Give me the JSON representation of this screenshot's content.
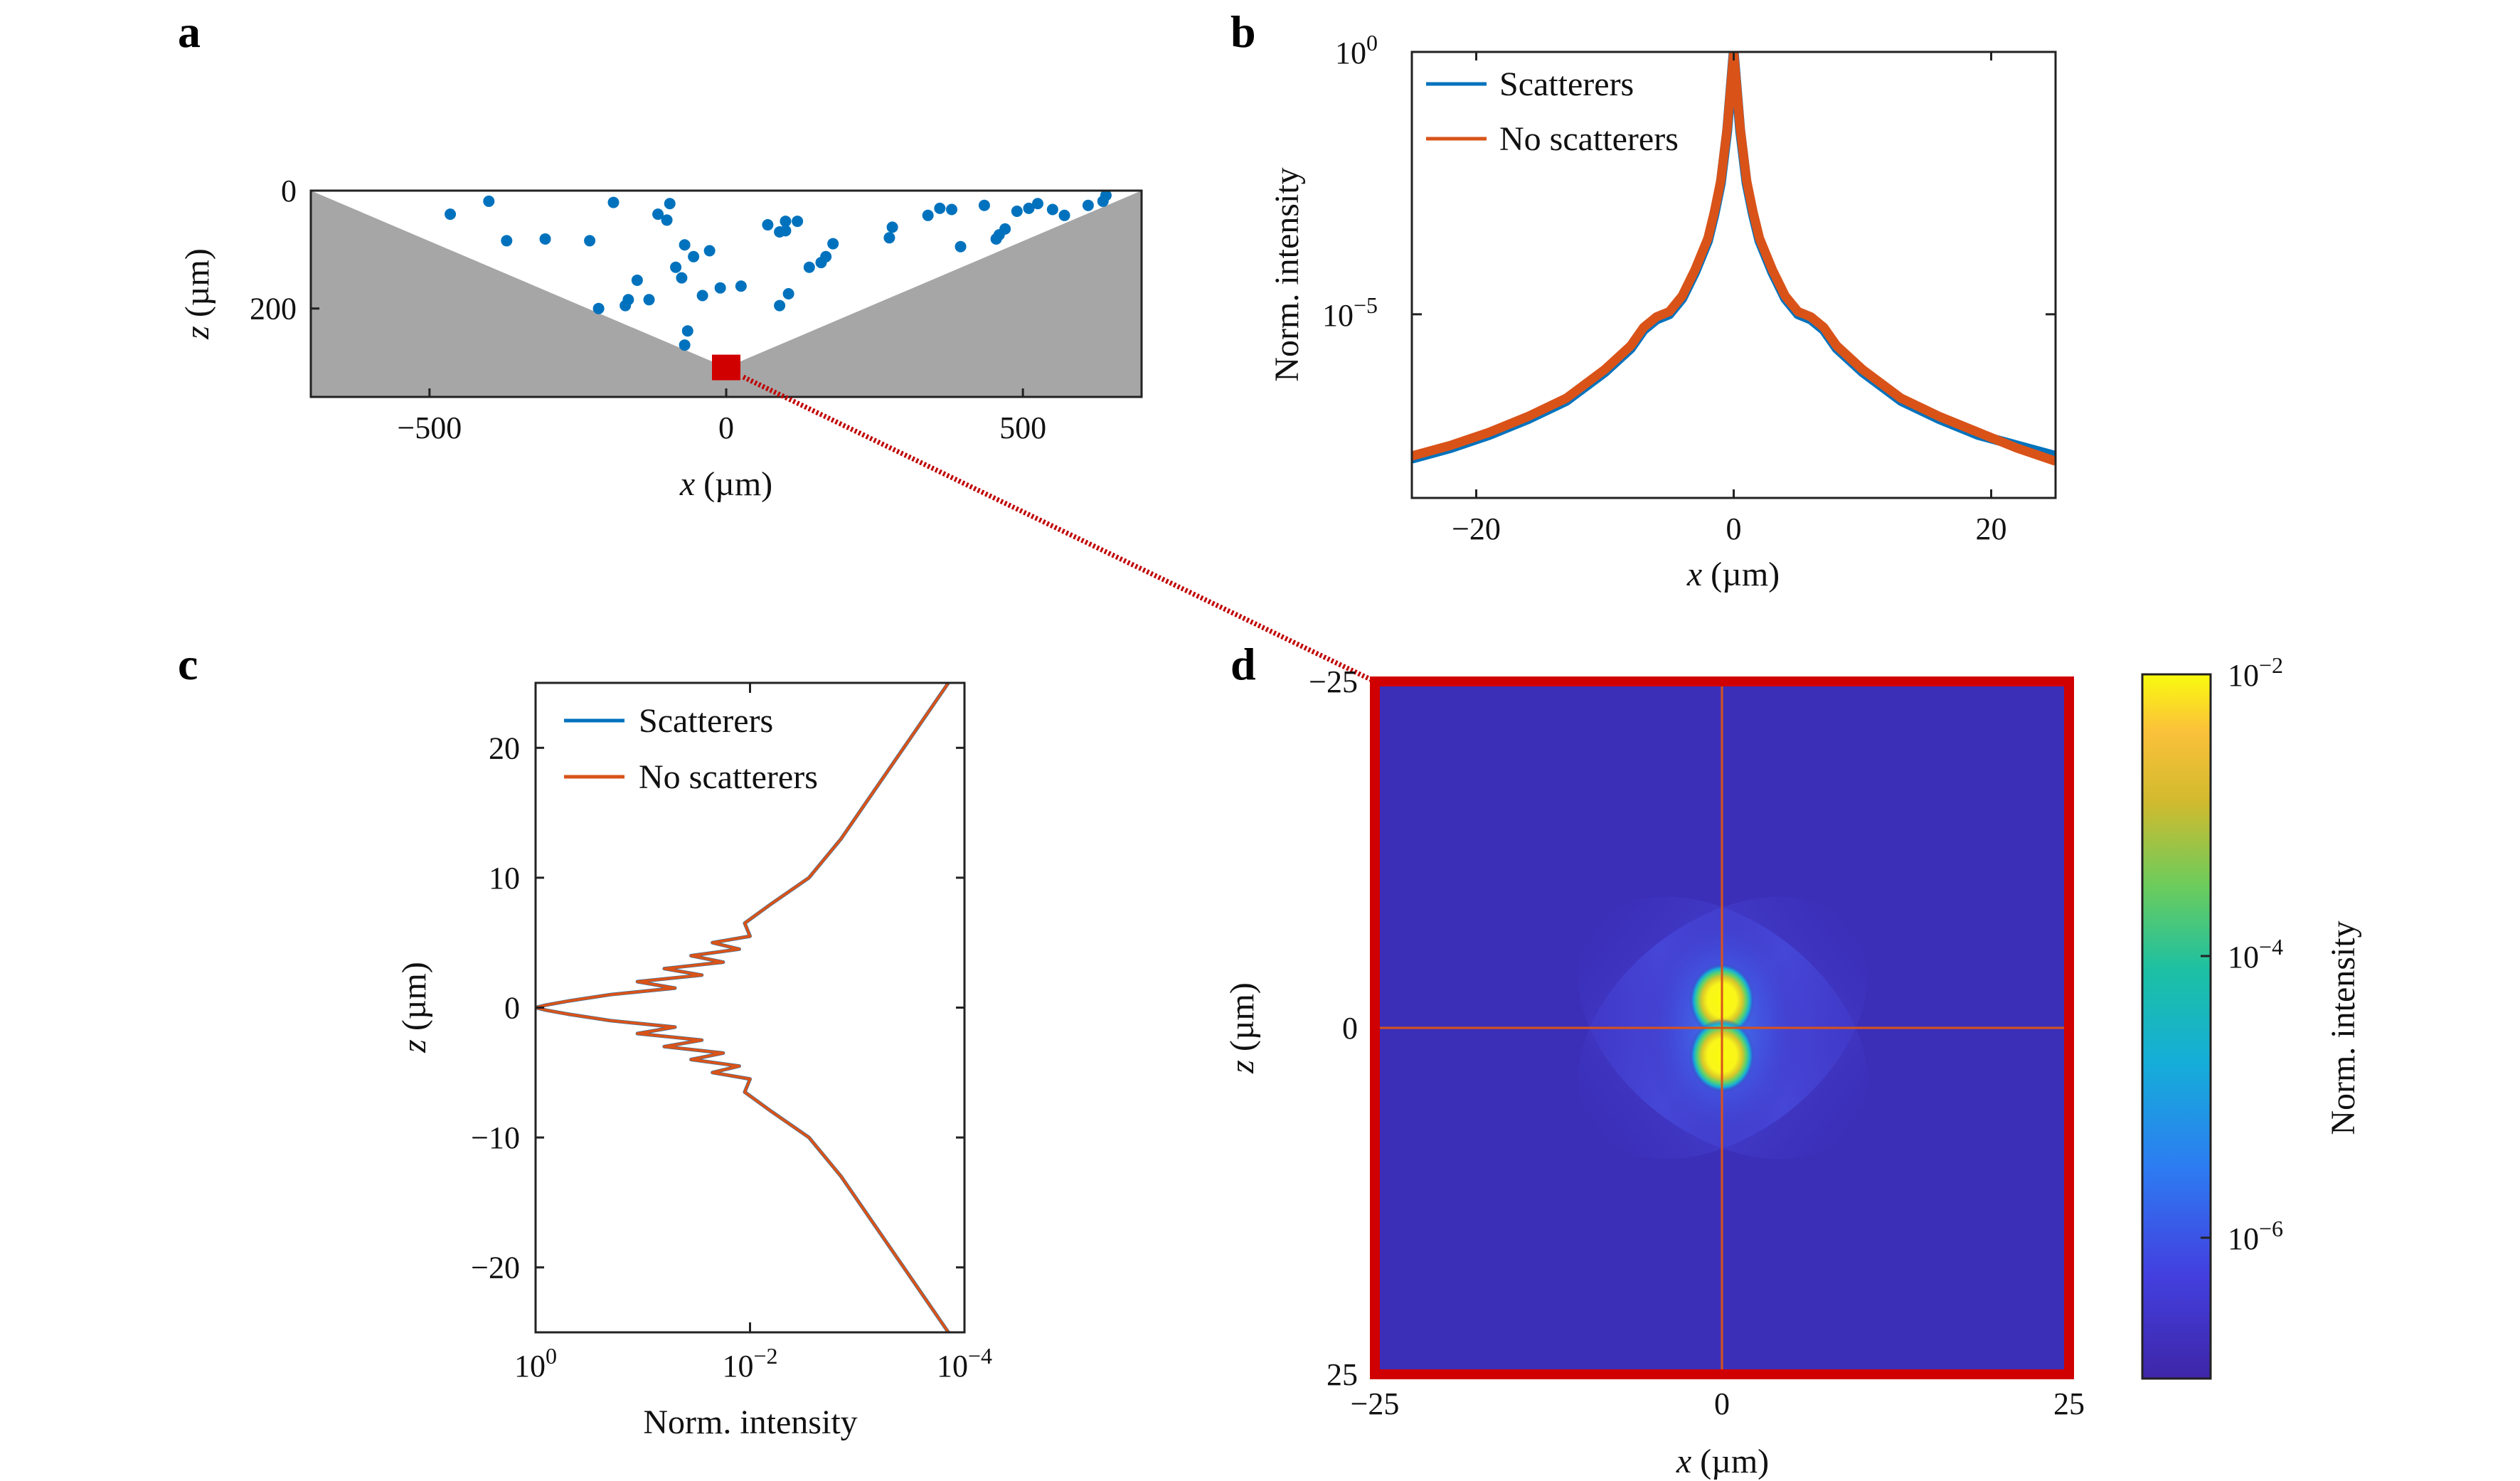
{
  "colors": {
    "scatterers": "#0072BD",
    "no_scatterers": "#D95319",
    "wedge": "#a6a6a6",
    "highlight_box": "#d10000",
    "heatmap_bg": "#3b2fb8"
  },
  "panels": {
    "a": {
      "label": "a"
    },
    "b": {
      "label": "b"
    },
    "c": {
      "label": "c"
    },
    "d": {
      "label": "d"
    }
  },
  "chart_data": [
    {
      "id": "a",
      "type": "scatter",
      "xlabel_var": "x",
      "xlabel_unit": " (µm)",
      "ylabel_var": "z",
      "ylabel_unit": " (µm)",
      "xlim": [
        -700,
        700
      ],
      "ylim": [
        0,
        350
      ],
      "y_reversed": true,
      "x_ticks": [
        "−500",
        "0",
        "500"
      ],
      "x_tick_values": [
        -500,
        0,
        500
      ],
      "y_ticks": [
        "0",
        "200"
      ],
      "y_tick_values": [
        0,
        200
      ],
      "wedge_apex": [
        0,
        300
      ],
      "wedge_corners": [
        [
          -700,
          0
        ],
        [
          700,
          0
        ]
      ],
      "highlight_point": [
        0,
        300
      ],
      "series": [
        {
          "points": [
            [
              -465,
              40
            ],
            [
              -400,
              18
            ],
            [
              -370,
              85
            ],
            [
              -305,
              82
            ],
            [
              -190,
              20
            ],
            [
              -230,
              85
            ],
            [
              -215,
              200
            ],
            [
              -170,
              195
            ],
            [
              -165,
              185
            ],
            [
              -150,
              152
            ],
            [
              -130,
              185
            ],
            [
              -115,
              40
            ],
            [
              -95,
              22
            ],
            [
              -100,
              50
            ],
            [
              -85,
              130
            ],
            [
              -75,
              148
            ],
            [
              -70,
              92
            ],
            [
              -65,
              238
            ],
            [
              -70,
              262
            ],
            [
              -55,
              112
            ],
            [
              -40,
              178
            ],
            [
              -28,
              102
            ],
            [
              -10,
              165
            ],
            [
              25,
              162
            ],
            [
              70,
              58
            ],
            [
              90,
              70
            ],
            [
              100,
              68
            ],
            [
              100,
              52
            ],
            [
              120,
              52
            ],
            [
              105,
              175
            ],
            [
              90,
              195
            ],
            [
              140,
              130
            ],
            [
              160,
              122
            ],
            [
              168,
              112
            ],
            [
              180,
              90
            ],
            [
              275,
              80
            ],
            [
              280,
              62
            ],
            [
              340,
              42
            ],
            [
              380,
              32
            ],
            [
              360,
              30
            ],
            [
              395,
              95
            ],
            [
              435,
              25
            ],
            [
              455,
              82
            ],
            [
              460,
              75
            ],
            [
              470,
              65
            ],
            [
              490,
              35
            ],
            [
              510,
              30
            ],
            [
              525,
              22
            ],
            [
              550,
              32
            ],
            [
              570,
              42
            ],
            [
              610,
              25
            ],
            [
              635,
              18
            ],
            [
              640,
              8
            ]
          ]
        }
      ]
    },
    {
      "id": "b",
      "type": "line",
      "xlabel_var": "x",
      "xlabel_unit": " (µm)",
      "ylabel": "Norm. intensity",
      "xlim": [
        -25,
        25
      ],
      "ylim_log10": [
        -8.5,
        0
      ],
      "y_scale": "log",
      "x_ticks": [
        "−20",
        "0",
        "20"
      ],
      "x_tick_values": [
        -20,
        0,
        20
      ],
      "y_ticks_base": [
        "10",
        "10"
      ],
      "y_ticks_exp": [
        "0",
        "−5"
      ],
      "y_tick_log_values": [
        0,
        -5
      ],
      "legend": [
        "Scatterers",
        "No scatterers"
      ],
      "series": [
        {
          "name": "Scatterers",
          "x": [
            -25,
            -22,
            -19,
            -16,
            -13,
            -10,
            -8,
            -7,
            -6,
            -5,
            -4,
            -3,
            -2,
            -1.5,
            -1,
            -0.5,
            0,
            0.5,
            1,
            1.5,
            2,
            3,
            4,
            5,
            6,
            7,
            8,
            10,
            13,
            16,
            19,
            22,
            25
          ],
          "log10_y": [
            -7.75,
            -7.55,
            -7.3,
            -7.0,
            -6.65,
            -6.1,
            -5.65,
            -5.3,
            -5.1,
            -5.0,
            -4.7,
            -4.2,
            -3.6,
            -3.1,
            -2.5,
            -1.5,
            0,
            -1.5,
            -2.5,
            -3.1,
            -3.6,
            -4.2,
            -4.7,
            -5.0,
            -5.1,
            -5.3,
            -5.65,
            -6.1,
            -6.65,
            -7.0,
            -7.3,
            -7.5,
            -7.7
          ]
        },
        {
          "name": "No scatterers",
          "x": [
            -25,
            -22,
            -19,
            -16,
            -13,
            -10,
            -8,
            -7,
            -6,
            -5,
            -4,
            -3,
            -2,
            -1.5,
            -1,
            -0.5,
            0,
            0.5,
            1,
            1.5,
            2,
            3,
            4,
            5,
            6,
            7,
            8,
            10,
            13,
            16,
            19,
            22,
            25
          ],
          "log10_y": [
            -7.7,
            -7.5,
            -7.25,
            -6.95,
            -6.6,
            -6.05,
            -5.6,
            -5.25,
            -5.05,
            -4.95,
            -4.65,
            -4.15,
            -3.55,
            -3.05,
            -2.45,
            -1.45,
            0,
            -1.45,
            -2.45,
            -3.05,
            -3.55,
            -4.15,
            -4.65,
            -4.95,
            -5.05,
            -5.25,
            -5.6,
            -6.05,
            -6.6,
            -6.95,
            -7.25,
            -7.55,
            -7.8
          ]
        }
      ]
    },
    {
      "id": "c",
      "type": "line",
      "xlabel": "Norm. intensity",
      "ylabel_var": "z",
      "ylabel_unit": " (µm)",
      "x_scale": "log",
      "x_reversed": true,
      "xlim_log10": [
        0,
        -4
      ],
      "ylim": [
        -25,
        25
      ],
      "x_ticks_base": [
        "10",
        "10",
        "10"
      ],
      "x_ticks_exp": [
        "0",
        "−2",
        "−4"
      ],
      "x_tick_log_values": [
        0,
        -2,
        -4
      ],
      "y_ticks": [
        "20",
        "10",
        "0",
        "−10",
        "−20"
      ],
      "y_tick_values": [
        20,
        10,
        0,
        -10,
        -20
      ],
      "legend": [
        "Scatterers",
        "No scatterers"
      ],
      "series": [
        {
          "name": "Scatterers",
          "z": [
            -25,
            -22,
            -19,
            -16,
            -13,
            -10,
            -8,
            -6.5,
            -5.5,
            -5,
            -4.5,
            -4,
            -3.5,
            -3,
            -2.5,
            -2,
            -1.5,
            -1,
            -0.5,
            -0.2,
            0,
            0.2,
            0.5,
            1,
            1.5,
            2,
            2.5,
            3,
            3.5,
            4,
            4.5,
            5,
            5.5,
            6.5,
            8,
            10,
            13,
            16,
            19,
            22,
            25
          ],
          "log10_y": [
            -3.85,
            -3.6,
            -3.35,
            -3.1,
            -2.85,
            -2.55,
            -2.2,
            -1.95,
            -2.0,
            -1.65,
            -1.9,
            -1.45,
            -1.75,
            -1.2,
            -1.55,
            -0.95,
            -1.3,
            -0.7,
            -0.3,
            -0.1,
            0,
            -0.1,
            -0.3,
            -0.7,
            -1.3,
            -0.95,
            -1.55,
            -1.2,
            -1.75,
            -1.45,
            -1.9,
            -1.65,
            -2.0,
            -1.95,
            -2.2,
            -2.55,
            -2.85,
            -3.1,
            -3.35,
            -3.6,
            -3.85
          ]
        },
        {
          "name": "No scatterers",
          "z": [
            -25,
            -22,
            -19,
            -16,
            -13,
            -10,
            -8,
            -6.5,
            -5.5,
            -5,
            -4.5,
            -4,
            -3.5,
            -3,
            -2.5,
            -2,
            -1.5,
            -1,
            -0.5,
            -0.2,
            0,
            0.2,
            0.5,
            1,
            1.5,
            2,
            2.5,
            3,
            3.5,
            4,
            4.5,
            5,
            5.5,
            6.5,
            8,
            10,
            13,
            16,
            19,
            22,
            25
          ],
          "log10_y": [
            -3.85,
            -3.6,
            -3.35,
            -3.1,
            -2.85,
            -2.55,
            -2.2,
            -1.95,
            -2.0,
            -1.65,
            -1.9,
            -1.45,
            -1.75,
            -1.2,
            -1.55,
            -0.95,
            -1.3,
            -0.7,
            -0.3,
            -0.1,
            0,
            -0.1,
            -0.3,
            -0.7,
            -1.3,
            -0.95,
            -1.55,
            -1.2,
            -1.75,
            -1.45,
            -1.9,
            -1.65,
            -2.0,
            -1.95,
            -2.2,
            -2.55,
            -2.85,
            -3.1,
            -3.35,
            -3.6,
            -3.85
          ]
        }
      ]
    },
    {
      "id": "d",
      "type": "heatmap",
      "xlabel_var": "x",
      "xlabel_unit": " (µm)",
      "ylabel_var": "z",
      "ylabel_unit": " (µm)",
      "xlim": [
        -25,
        25
      ],
      "ylim": [
        -25,
        25
      ],
      "y_reversed": true,
      "x_ticks": [
        "−25",
        "0",
        "25"
      ],
      "x_tick_values": [
        -25,
        0,
        25
      ],
      "y_ticks": [
        "−25",
        "0",
        "25"
      ],
      "y_tick_values": [
        -25,
        0,
        25
      ],
      "colorbar_label": "Norm. intensity",
      "colorbar_scale": "log",
      "colorbar_range_log10": [
        -7.0,
        -2.0
      ],
      "colorbar_ticks_base": [
        "10",
        "10",
        "10"
      ],
      "colorbar_ticks_exp": [
        "−2",
        "−4",
        "−6"
      ],
      "colorbar_tick_log_values": [
        -2,
        -4,
        -6
      ],
      "crosshair": [
        0,
        0
      ],
      "features": [
        {
          "x": 0,
          "z": -2,
          "log10_peak": -2.0
        },
        {
          "x": 0,
          "z": 2,
          "log10_peak": -2.0
        }
      ]
    }
  ]
}
